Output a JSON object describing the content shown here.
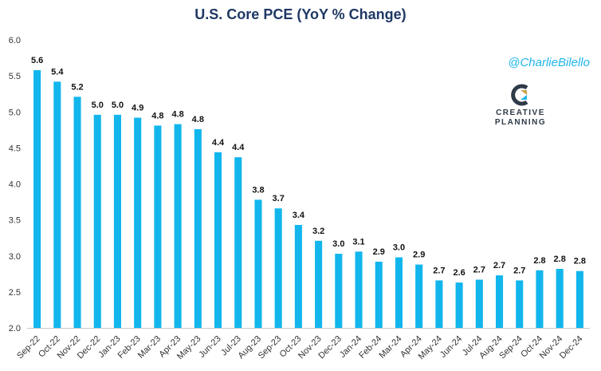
{
  "header": {
    "handle": "@CharlieBilello",
    "logo_line1": "CREATIVE",
    "logo_line2": "PLANNING"
  },
  "colors": {
    "bar": "#12b6ec",
    "title": "#1f3864",
    "handle": "#1fb5ea"
  },
  "chart_data": {
    "type": "bar",
    "title": "U.S. Core PCE (YoY % Change)",
    "xlabel": "",
    "ylabel": "",
    "ylim": [
      2.0,
      6.0
    ],
    "yticks": [
      "2.0",
      "2.5",
      "3.0",
      "3.5",
      "4.0",
      "4.5",
      "5.0",
      "5.5",
      "6.0"
    ],
    "grid": false,
    "categories": [
      "Sep-22",
      "Oct-22",
      "Nov-22",
      "Dec-22",
      "Jan-23",
      "Feb-23",
      "Mar-23",
      "Apr-23",
      "May-23",
      "Jun-23",
      "Jul-23",
      "Aug-23",
      "Sep-23",
      "Oct-23",
      "Nov-23",
      "Dec-23",
      "Jan-24",
      "Feb-24",
      "Mar-24",
      "Apr-24",
      "May-24",
      "Jun-24",
      "Jul-24",
      "Aug-24",
      "Sep-24",
      "Oct-24",
      "Nov-24",
      "Dec-24"
    ],
    "values": [
      5.58,
      5.42,
      5.21,
      4.96,
      4.96,
      4.92,
      4.81,
      4.83,
      4.76,
      4.44,
      4.37,
      3.78,
      3.66,
      3.43,
      3.21,
      3.03,
      3.06,
      2.92,
      2.98,
      2.88,
      2.66,
      2.63,
      2.67,
      2.73,
      2.66,
      2.8,
      2.82,
      2.79
    ],
    "labels": [
      "5.6",
      "5.4",
      "5.2",
      "5.0",
      "5.0",
      "4.9",
      "4.8",
      "4.8",
      "4.8",
      "4.4",
      "4.4",
      "3.8",
      "3.7",
      "3.4",
      "3.2",
      "3.0",
      "3.1",
      "2.9",
      "3.0",
      "2.9",
      "2.7",
      "2.6",
      "2.7",
      "2.7",
      "2.7",
      "2.8",
      "2.8",
      "2.8"
    ]
  }
}
